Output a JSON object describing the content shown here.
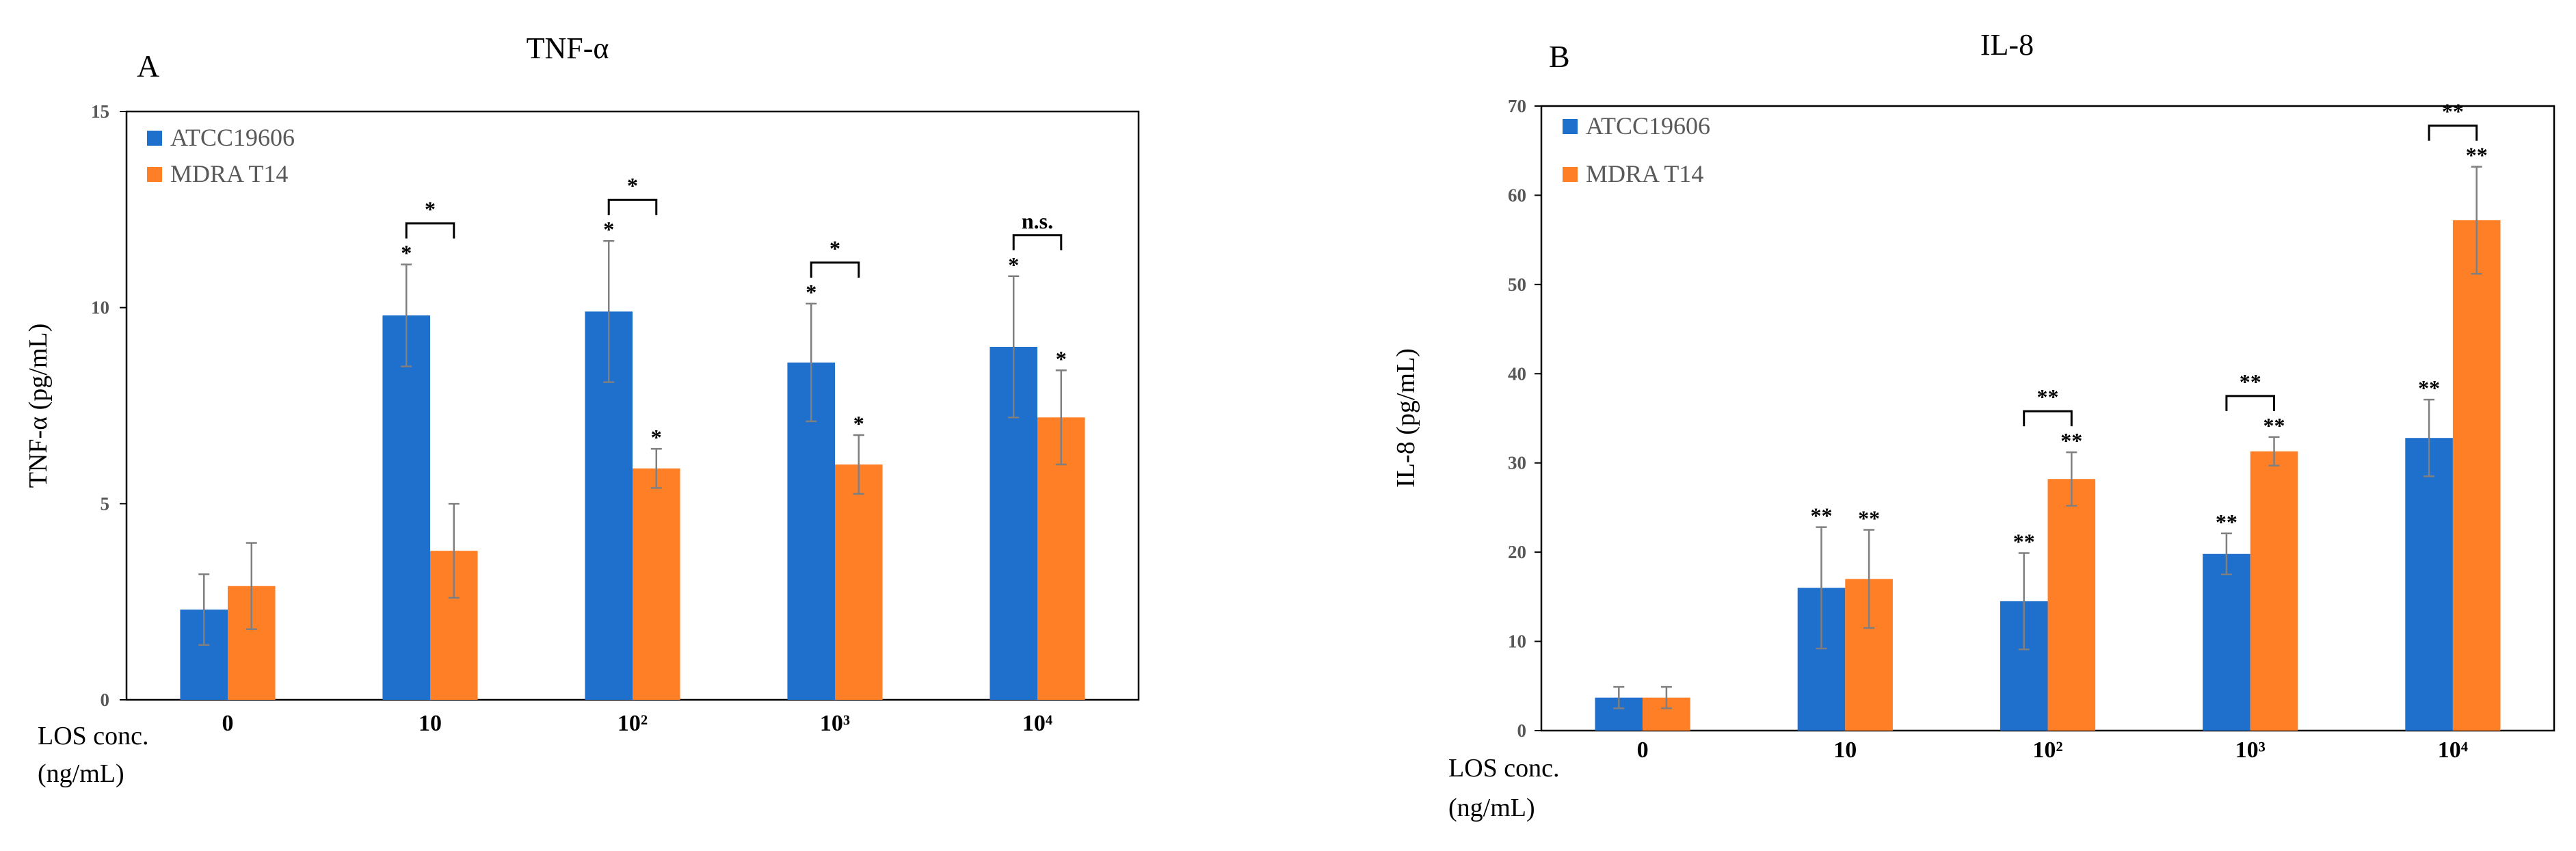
{
  "colors": {
    "ATCC19606": "#1f6fcc",
    "MDRA T14": "#ff7f27",
    "error": "#7f7f7f"
  },
  "chart_data": [
    {
      "type": "bar",
      "panel": "A",
      "title": "TNF-α",
      "ylabel": "TNF-α (pg/mL)",
      "xlabel": [
        "LOS conc.",
        "(ng/mL)"
      ],
      "categories": [
        "0",
        "10",
        "10²",
        "10³",
        "10⁴"
      ],
      "ylim": [
        0,
        15
      ],
      "yticks": [
        0,
        5,
        10,
        15
      ],
      "legend": "top-left",
      "grid": false,
      "series": [
        {
          "name": "ATCC19606",
          "values": [
            2.3,
            9.8,
            9.9,
            8.6,
            9.0
          ],
          "errors": [
            0.9,
            1.3,
            1.8,
            1.5,
            1.8
          ],
          "marks": [
            "",
            "*",
            "*",
            "*",
            "*"
          ]
        },
        {
          "name": "MDRA T14",
          "values": [
            2.9,
            3.8,
            5.9,
            6.0,
            7.2
          ],
          "errors": [
            1.1,
            1.2,
            0.5,
            0.75,
            1.2
          ],
          "marks": [
            "",
            "",
            "*",
            "*",
            "*"
          ]
        }
      ],
      "comparisons": [
        "",
        "*",
        "*",
        "*",
        "n.s."
      ]
    },
    {
      "type": "bar",
      "panel": "B",
      "title": "IL-8",
      "ylabel": "IL-8 (pg/mL)",
      "xlabel": [
        "LOS conc.",
        "(ng/mL)"
      ],
      "categories": [
        "0",
        "10",
        "10²",
        "10³",
        "10⁴"
      ],
      "ylim": [
        0,
        70
      ],
      "yticks": [
        0,
        10,
        20,
        30,
        40,
        50,
        60,
        70
      ],
      "legend": "top-left",
      "grid": false,
      "series": [
        {
          "name": "ATCC19606",
          "values": [
            3.7,
            16,
            14.5,
            19.8,
            32.8
          ],
          "errors": [
            1.2,
            6.8,
            5.4,
            2.3,
            4.3
          ],
          "marks": [
            "",
            "**",
            "**",
            "**",
            "**"
          ]
        },
        {
          "name": "MDRA T14",
          "values": [
            3.7,
            17,
            28.2,
            31.3,
            57.2
          ],
          "errors": [
            1.2,
            5.5,
            3.0,
            1.6,
            6.0
          ],
          "marks": [
            "",
            "**",
            "**",
            "**",
            "**"
          ]
        }
      ],
      "comparisons": [
        "",
        "",
        "**",
        "**",
        "**"
      ]
    }
  ]
}
